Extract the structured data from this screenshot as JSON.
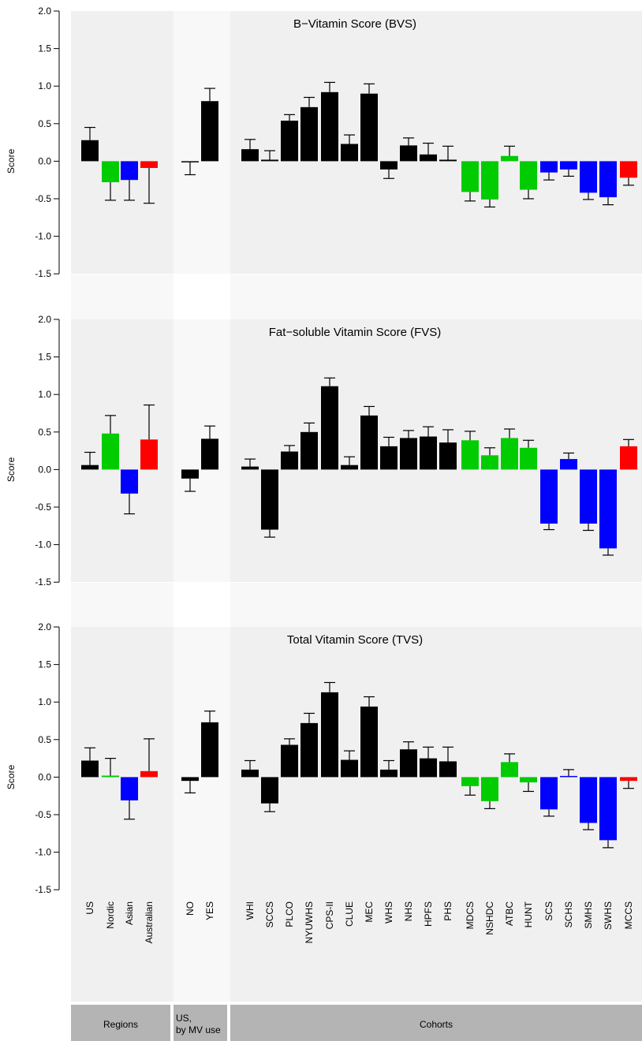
{
  "chart_data": [
    {
      "type": "bar",
      "title": "B−Vitamin Score (BVS)",
      "ylabel": "Score",
      "ylim": [
        -1.5,
        2.0
      ],
      "yticks": [
        "2.0",
        "1.5",
        "1.0",
        "0.5",
        "0.0",
        "-0.5",
        "-1.0",
        "-1.5"
      ],
      "categories": [
        "US",
        "Nordic",
        "Asian",
        "Australian",
        "NO",
        "YES",
        "WHI",
        "SCCS",
        "PLCO",
        "NYUWHS",
        "CPS-II",
        "CLUE",
        "MEC",
        "WHS",
        "NHS",
        "HPFS",
        "PHS",
        "MDCS",
        "NSHDC",
        "ATBC",
        "HUNT",
        "SCS",
        "SCHS",
        "SMHS",
        "SWHS",
        "MCCS"
      ],
      "values": [
        0.28,
        -0.28,
        -0.25,
        -0.09,
        -0.01,
        0.8,
        0.16,
        0.02,
        0.54,
        0.72,
        0.92,
        0.23,
        0.9,
        -0.11,
        0.21,
        0.09,
        0.02,
        -0.41,
        -0.51,
        0.07,
        -0.38,
        -0.15,
        -0.11,
        -0.42,
        -0.48,
        -0.22
      ],
      "errors": [
        0.17,
        0.24,
        0.27,
        0.47,
        0.17,
        0.17,
        0.13,
        0.12,
        0.08,
        0.13,
        0.13,
        0.12,
        0.13,
        0.12,
        0.1,
        0.15,
        0.18,
        0.12,
        0.1,
        0.13,
        0.12,
        0.1,
        0.09,
        0.09,
        0.1,
        0.1
      ]
    },
    {
      "type": "bar",
      "title": "Fat−soluble Vitamin Score (FVS)",
      "ylabel": "Score",
      "ylim": [
        -1.5,
        2.0
      ],
      "yticks": [
        "2.0",
        "1.5",
        "1.0",
        "0.5",
        "0.0",
        "-0.5",
        "-1.0",
        "-1.5"
      ],
      "categories": [
        "US",
        "Nordic",
        "Asian",
        "Australian",
        "NO",
        "YES",
        "WHI",
        "SCCS",
        "PLCO",
        "NYUWHS",
        "CPS-II",
        "CLUE",
        "MEC",
        "WHS",
        "NHS",
        "HPFS",
        "PHS",
        "MDCS",
        "NSHDC",
        "ATBC",
        "HUNT",
        "SCS",
        "SCHS",
        "SMHS",
        "SWHS",
        "MCCS"
      ],
      "values": [
        0.06,
        0.48,
        -0.32,
        0.4,
        -0.12,
        0.41,
        0.04,
        -0.8,
        0.24,
        0.5,
        1.11,
        0.06,
        0.72,
        0.31,
        0.42,
        0.44,
        0.36,
        0.39,
        0.19,
        0.42,
        0.29,
        -0.72,
        0.14,
        -0.72,
        -1.05,
        0.31
      ],
      "errors": [
        0.17,
        0.24,
        0.27,
        0.46,
        0.17,
        0.17,
        0.1,
        0.1,
        0.08,
        0.12,
        0.11,
        0.11,
        0.12,
        0.12,
        0.1,
        0.13,
        0.17,
        0.12,
        0.1,
        0.12,
        0.1,
        0.08,
        0.08,
        0.09,
        0.09,
        0.09
      ]
    },
    {
      "type": "bar",
      "title": "Total Vitamin Score (TVS)",
      "ylabel": "Score",
      "ylim": [
        -1.5,
        2.0
      ],
      "yticks": [
        "2.0",
        "1.5",
        "1.0",
        "0.5",
        "0.0",
        "-0.5",
        "-1.0",
        "-1.5"
      ],
      "categories": [
        "US",
        "Nordic",
        "Asian",
        "Australian",
        "NO",
        "YES",
        "WHI",
        "SCCS",
        "PLCO",
        "NYUWHS",
        "CPS-II",
        "CLUE",
        "MEC",
        "WHS",
        "NHS",
        "HPFS",
        "PHS",
        "MDCS",
        "NSHDC",
        "ATBC",
        "HUNT",
        "SCS",
        "SCHS",
        "SMHS",
        "SWHS",
        "MCCS"
      ],
      "values": [
        0.22,
        0.02,
        -0.31,
        0.08,
        -0.05,
        0.73,
        0.1,
        -0.35,
        0.43,
        0.72,
        1.13,
        0.23,
        0.94,
        0.1,
        0.37,
        0.25,
        0.21,
        -0.12,
        -0.32,
        0.2,
        -0.07,
        -0.43,
        0.01,
        -0.61,
        -0.84,
        -0.05
      ],
      "errors": [
        0.17,
        0.23,
        0.25,
        0.43,
        0.16,
        0.15,
        0.12,
        0.11,
        0.08,
        0.13,
        0.13,
        0.12,
        0.13,
        0.12,
        0.1,
        0.15,
        0.19,
        0.12,
        0.1,
        0.11,
        0.12,
        0.09,
        0.09,
        0.09,
        0.1,
        0.1
      ]
    }
  ],
  "colors": {
    "US": "#000000",
    "Nordic": "#00cc00",
    "Asian": "#0000ff",
    "Australian": "#ff0000",
    "region_band": "#f0f0f0",
    "us_band": "#f8f8f8",
    "cohort_band": "#f0f0f0",
    "footer": "#b4b4b4"
  },
  "category_groups": [
    "US",
    "Nordic",
    "Asian",
    "Australian",
    "US",
    "US",
    "US",
    "US",
    "US",
    "US",
    "US",
    "US",
    "US",
    "US",
    "US",
    "US",
    "US",
    "Nordic",
    "Nordic",
    "Nordic",
    "Nordic",
    "Asian",
    "Asian",
    "Asian",
    "Asian",
    "Australian"
  ],
  "footer": {
    "regions": "Regions",
    "us_by_mv_line1": "US,",
    "us_by_mv_line2": "by MV use",
    "cohorts": "Cohorts"
  }
}
